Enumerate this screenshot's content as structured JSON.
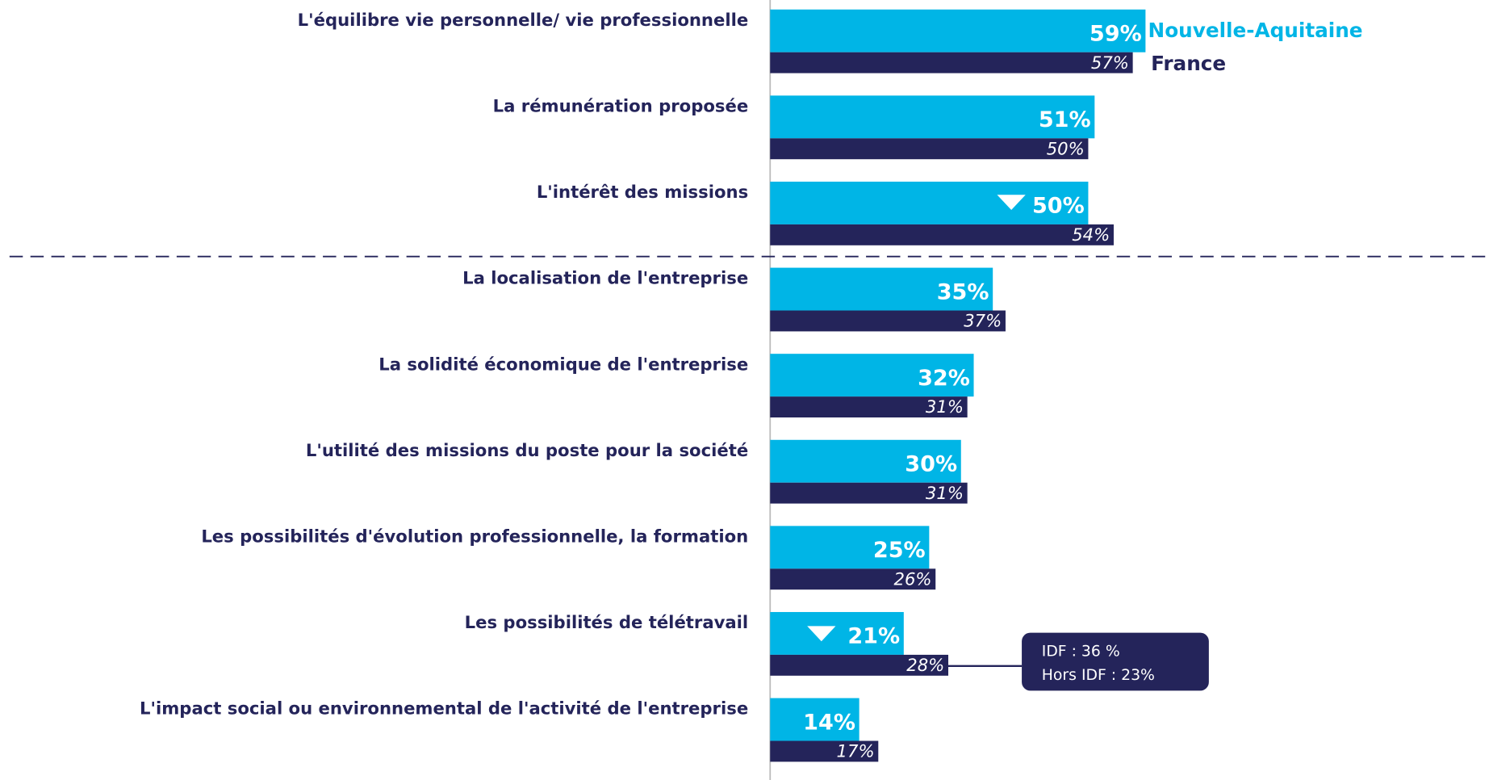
{
  "chart_data": {
    "type": "hbar",
    "categories": [
      "L'équilibre vie personnelle/ vie professionnelle",
      "La rémunération proposée",
      "L'intérêt des missions",
      "La localisation de l'entreprise",
      "La solidité économique de l'entreprise",
      "L'utilité des missions du poste pour la société",
      "Les possibilités d'évolution professionnelle, la formation",
      "Les possibilités de télétravail",
      "L'impact social ou environnemental de l'activité de l'entreprise"
    ],
    "series": [
      {
        "name": "Nouvelle-Aquitaine",
        "color": "#00b5e6",
        "values": [
          59,
          51,
          50,
          35,
          32,
          30,
          25,
          21,
          14
        ],
        "value_labels": [
          "59%",
          "51%",
          "50%",
          "35%",
          "32%",
          "30%",
          "25%",
          "21%",
          "14%"
        ]
      },
      {
        "name": "France",
        "color": "#24245a",
        "values": [
          57,
          50,
          54,
          37,
          31,
          31,
          26,
          28,
          17
        ],
        "value_labels": [
          "57%",
          "50%",
          "54%",
          "37%",
          "31%",
          "31%",
          "26%",
          "28%",
          "17%"
        ]
      }
    ],
    "xlim": [
      0,
      100
    ],
    "annotations": [
      "IDF : 36 %",
      "Hors IDF : 23%"
    ]
  }
}
